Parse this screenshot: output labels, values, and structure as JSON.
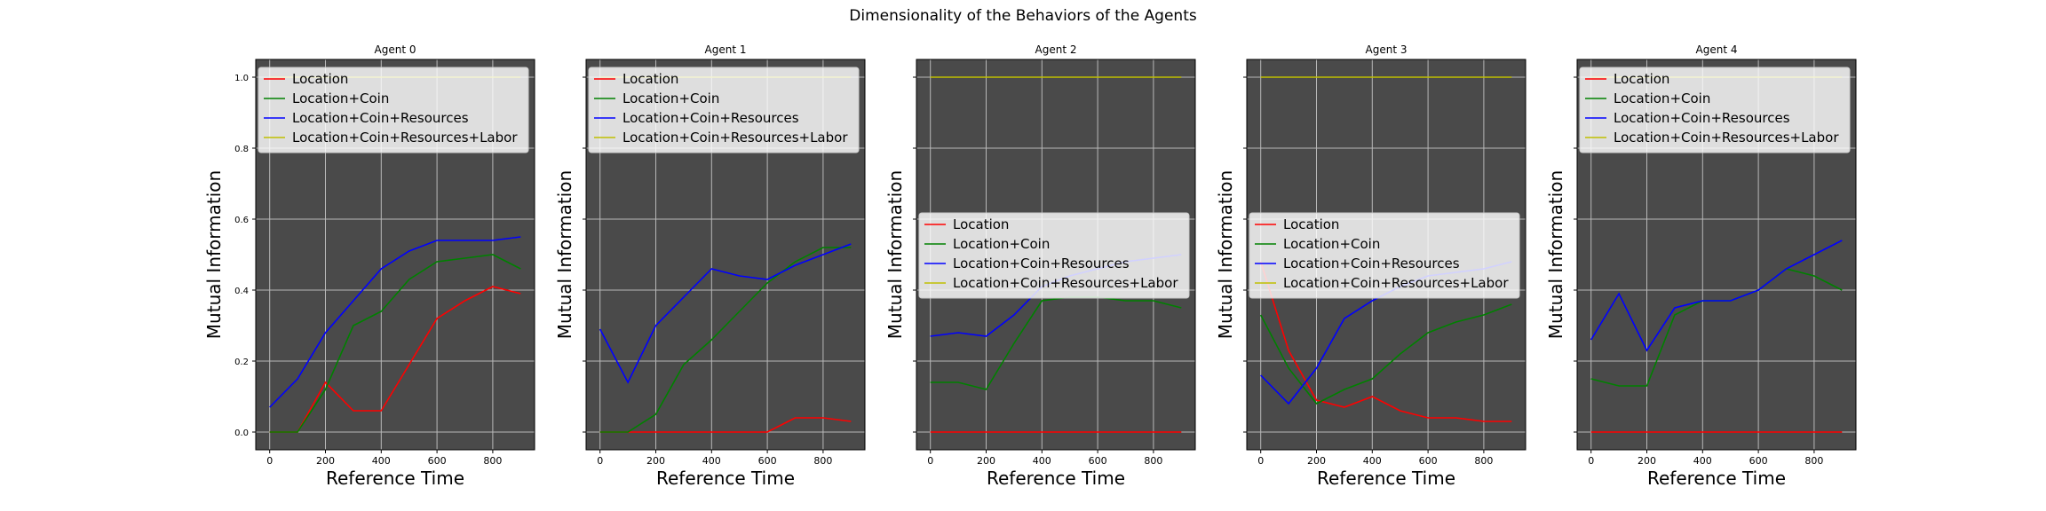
{
  "figure": {
    "suptitle": "Dimensionality of the Behaviors of the Agents"
  },
  "chart_data": [
    {
      "type": "line",
      "title": "Agent 0",
      "xlabel": "Reference Time",
      "ylabel": "Mutual Information",
      "xlim": [
        -50,
        950
      ],
      "ylim": [
        -0.05,
        1.05
      ],
      "xticks": [
        0,
        200,
        400,
        600,
        800
      ],
      "yticks": [
        0.0,
        0.2,
        0.4,
        0.6,
        0.8,
        1.0
      ],
      "ytick_labels_shown": true,
      "grid": true,
      "legend_position": "top-left",
      "x": [
        0,
        100,
        200,
        300,
        400,
        500,
        600,
        700,
        800,
        900
      ],
      "series": [
        {
          "name": "Location",
          "color": "#ff0000",
          "values": [
            0.0,
            0.0,
            0.14,
            0.06,
            0.06,
            0.19,
            0.32,
            0.37,
            0.41,
            0.39
          ]
        },
        {
          "name": "Location+Coin",
          "color": "#008000",
          "values": [
            0.0,
            0.0,
            0.12,
            0.3,
            0.34,
            0.43,
            0.48,
            0.49,
            0.5,
            0.46
          ]
        },
        {
          "name": "Location+Coin+Resources",
          "color": "#0000ff",
          "values": [
            0.07,
            0.15,
            0.28,
            0.37,
            0.46,
            0.51,
            0.54,
            0.54,
            0.54,
            0.55
          ]
        },
        {
          "name": "Location+Coin+Resources+Labor",
          "color": "#bfbf00",
          "values": [
            1.0,
            1.0,
            1.0,
            1.0,
            1.0,
            1.0,
            1.0,
            1.0,
            1.0,
            1.0
          ]
        }
      ]
    },
    {
      "type": "line",
      "title": "Agent 1",
      "xlabel": "Reference Time",
      "ylabel": "Mutual Information",
      "xlim": [
        -50,
        950
      ],
      "ylim": [
        -0.05,
        1.05
      ],
      "xticks": [
        0,
        200,
        400,
        600,
        800
      ],
      "yticks": [
        0.0,
        0.2,
        0.4,
        0.6,
        0.8,
        1.0
      ],
      "ytick_labels_shown": false,
      "grid": true,
      "legend_position": "top-left",
      "x": [
        0,
        100,
        200,
        300,
        400,
        500,
        600,
        700,
        800,
        900
      ],
      "series": [
        {
          "name": "Location",
          "color": "#ff0000",
          "values": [
            0.0,
            0.0,
            0.0,
            0.0,
            0.0,
            0.0,
            0.0,
            0.04,
            0.04,
            0.03
          ]
        },
        {
          "name": "Location+Coin",
          "color": "#008000",
          "values": [
            0.0,
            0.0,
            0.05,
            0.19,
            0.26,
            0.34,
            0.42,
            0.48,
            0.52,
            0.52
          ]
        },
        {
          "name": "Location+Coin+Resources",
          "color": "#0000ff",
          "values": [
            0.29,
            0.14,
            0.3,
            0.38,
            0.46,
            0.44,
            0.43,
            0.47,
            0.5,
            0.53
          ]
        },
        {
          "name": "Location+Coin+Resources+Labor",
          "color": "#bfbf00",
          "values": [
            1.0,
            1.0,
            1.0,
            1.0,
            1.0,
            1.0,
            1.0,
            1.0,
            1.0,
            1.0
          ]
        }
      ]
    },
    {
      "type": "line",
      "title": "Agent 2",
      "xlabel": "Reference Time",
      "ylabel": "Mutual Information",
      "xlim": [
        -50,
        950
      ],
      "ylim": [
        -0.05,
        1.05
      ],
      "xticks": [
        0,
        200,
        400,
        600,
        800
      ],
      "yticks": [
        0.0,
        0.2,
        0.4,
        0.6,
        0.8,
        1.0
      ],
      "ytick_labels_shown": false,
      "grid": true,
      "legend_position": "center-left",
      "x": [
        0,
        100,
        200,
        300,
        400,
        500,
        600,
        700,
        800,
        900
      ],
      "series": [
        {
          "name": "Location",
          "color": "#ff0000",
          "values": [
            0.0,
            0.0,
            0.0,
            0.0,
            0.0,
            0.0,
            0.0,
            0.0,
            0.0,
            0.0
          ]
        },
        {
          "name": "Location+Coin",
          "color": "#008000",
          "values": [
            0.14,
            0.14,
            0.12,
            0.25,
            0.37,
            0.38,
            0.38,
            0.37,
            0.37,
            0.35
          ]
        },
        {
          "name": "Location+Coin+Resources",
          "color": "#0000ff",
          "values": [
            0.27,
            0.28,
            0.27,
            0.33,
            0.41,
            0.44,
            0.46,
            0.48,
            0.49,
            0.5
          ]
        },
        {
          "name": "Location+Coin+Resources+Labor",
          "color": "#bfbf00",
          "values": [
            1.0,
            1.0,
            1.0,
            1.0,
            1.0,
            1.0,
            1.0,
            1.0,
            1.0,
            1.0
          ]
        }
      ]
    },
    {
      "type": "line",
      "title": "Agent 3",
      "xlabel": "Reference Time",
      "ylabel": "Mutual Information",
      "xlim": [
        -50,
        950
      ],
      "ylim": [
        -0.05,
        1.05
      ],
      "xticks": [
        0,
        200,
        400,
        600,
        800
      ],
      "yticks": [
        0.0,
        0.2,
        0.4,
        0.6,
        0.8,
        1.0
      ],
      "ytick_labels_shown": false,
      "grid": true,
      "legend_position": "center-left",
      "x": [
        0,
        100,
        200,
        300,
        400,
        500,
        600,
        700,
        800,
        900
      ],
      "series": [
        {
          "name": "Location",
          "color": "#ff0000",
          "values": [
            0.48,
            0.23,
            0.09,
            0.07,
            0.1,
            0.06,
            0.04,
            0.04,
            0.03,
            0.03
          ]
        },
        {
          "name": "Location+Coin",
          "color": "#008000",
          "values": [
            0.33,
            0.18,
            0.08,
            0.12,
            0.15,
            0.22,
            0.28,
            0.31,
            0.33,
            0.36
          ]
        },
        {
          "name": "Location+Coin+Resources",
          "color": "#0000ff",
          "values": [
            0.16,
            0.08,
            0.18,
            0.32,
            0.37,
            0.41,
            0.44,
            0.45,
            0.46,
            0.48
          ]
        },
        {
          "name": "Location+Coin+Resources+Labor",
          "color": "#bfbf00",
          "values": [
            1.0,
            1.0,
            1.0,
            1.0,
            1.0,
            1.0,
            1.0,
            1.0,
            1.0,
            1.0
          ]
        }
      ]
    },
    {
      "type": "line",
      "title": "Agent 4",
      "xlabel": "Reference Time",
      "ylabel": "Mutual Information",
      "xlim": [
        -50,
        950
      ],
      "ylim": [
        -0.05,
        1.05
      ],
      "xticks": [
        0,
        200,
        400,
        600,
        800
      ],
      "yticks": [
        0.0,
        0.2,
        0.4,
        0.6,
        0.8,
        1.0
      ],
      "ytick_labels_shown": false,
      "grid": true,
      "legend_position": "top-left",
      "x": [
        0,
        100,
        200,
        300,
        400,
        500,
        600,
        700,
        800,
        900
      ],
      "series": [
        {
          "name": "Location",
          "color": "#ff0000",
          "values": [
            0.0,
            0.0,
            0.0,
            0.0,
            0.0,
            0.0,
            0.0,
            0.0,
            0.0,
            0.0
          ]
        },
        {
          "name": "Location+Coin",
          "color": "#008000",
          "values": [
            0.15,
            0.13,
            0.13,
            0.33,
            0.37,
            0.37,
            0.4,
            0.46,
            0.44,
            0.4
          ]
        },
        {
          "name": "Location+Coin+Resources",
          "color": "#0000ff",
          "values": [
            0.26,
            0.39,
            0.23,
            0.35,
            0.37,
            0.37,
            0.4,
            0.46,
            0.5,
            0.54
          ]
        },
        {
          "name": "Location+Coin+Resources+Labor",
          "color": "#bfbf00",
          "values": [
            1.0,
            1.0,
            1.0,
            1.0,
            1.0,
            1.0,
            1.0,
            1.0,
            1.0,
            1.0
          ]
        }
      ]
    }
  ]
}
